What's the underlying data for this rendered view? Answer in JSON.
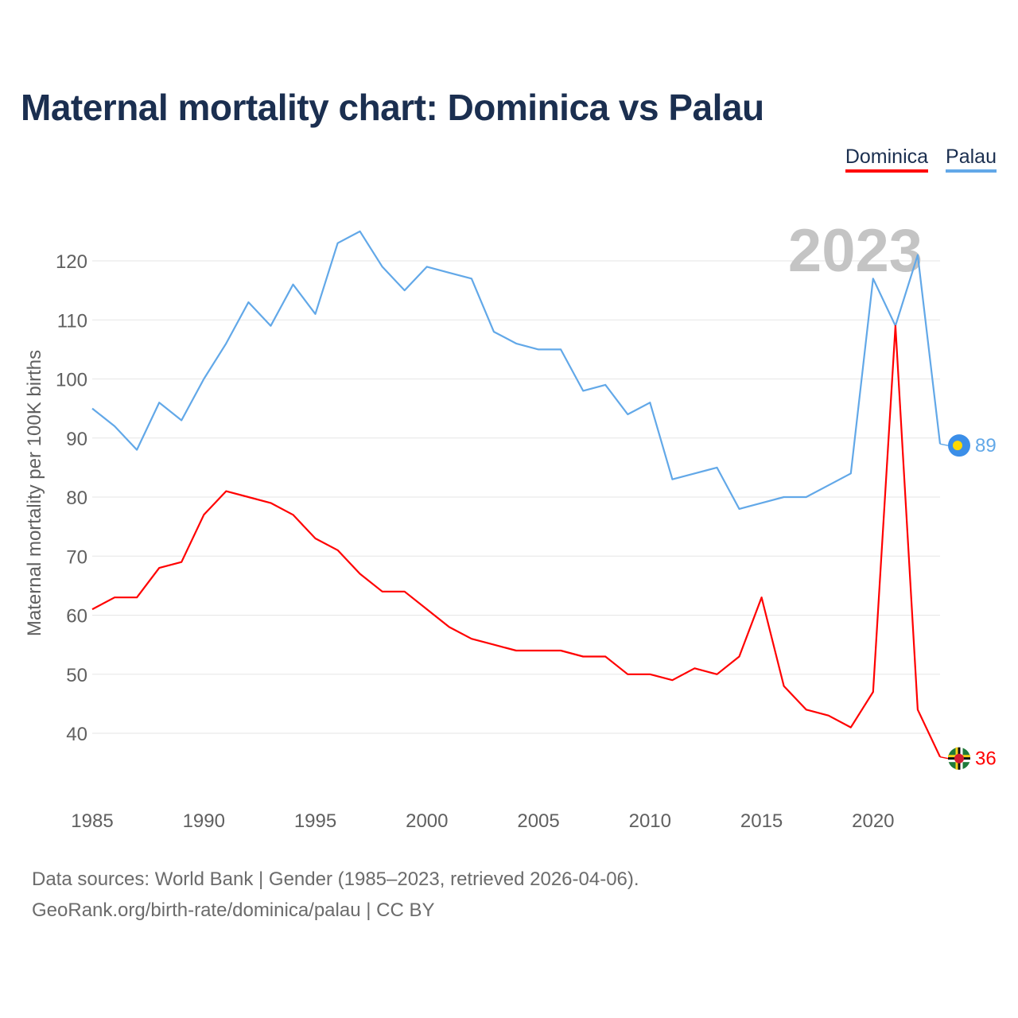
{
  "chart_data": {
    "type": "line",
    "title": "Maternal mortality chart: Dominica vs Palau",
    "ylabel": "Maternal mortality per 100K births",
    "xlabel": "",
    "xlim": [
      1985,
      2023
    ],
    "ylim": [
      30,
      130
    ],
    "y_ticks": [
      40,
      50,
      60,
      70,
      80,
      90,
      100,
      110,
      120
    ],
    "x_ticks": [
      1985,
      1990,
      1995,
      2000,
      2005,
      2010,
      2015,
      2020
    ],
    "grid": true,
    "legend_position": "top-right",
    "year_watermark": "2023",
    "x": [
      1985,
      1986,
      1987,
      1988,
      1989,
      1990,
      1991,
      1992,
      1993,
      1994,
      1995,
      1996,
      1997,
      1998,
      1999,
      2000,
      2001,
      2002,
      2003,
      2004,
      2005,
      2006,
      2007,
      2008,
      2009,
      2010,
      2011,
      2012,
      2013,
      2014,
      2015,
      2016,
      2017,
      2018,
      2019,
      2020,
      2021,
      2022,
      2023
    ],
    "series": [
      {
        "name": "Dominica",
        "color": "#ff0000",
        "end_label": "36",
        "values": [
          61,
          63,
          63,
          68,
          69,
          77,
          81,
          80,
          79,
          77,
          73,
          71,
          67,
          64,
          64,
          61,
          58,
          56,
          55,
          54,
          54,
          54,
          53,
          53,
          50,
          50,
          49,
          51,
          50,
          53,
          63,
          48,
          44,
          43,
          41,
          47,
          109,
          44,
          36
        ]
      },
      {
        "name": "Palau",
        "color": "#62a8e8",
        "end_label": "89",
        "values": [
          95,
          92,
          88,
          96,
          93,
          100,
          106,
          113,
          109,
          116,
          111,
          123,
          125,
          119,
          115,
          119,
          118,
          117,
          108,
          106,
          105,
          105,
          98,
          99,
          94,
          96,
          83,
          84,
          85,
          78,
          79,
          80,
          80,
          82,
          84,
          117,
          109,
          121,
          89
        ]
      }
    ]
  },
  "footer": {
    "line1": "Data sources: World Bank | Gender (1985–2023, retrieved 2026-04-06).",
    "line2": "GeoRank.org/birth-rate/dominica/palau | CC BY"
  }
}
